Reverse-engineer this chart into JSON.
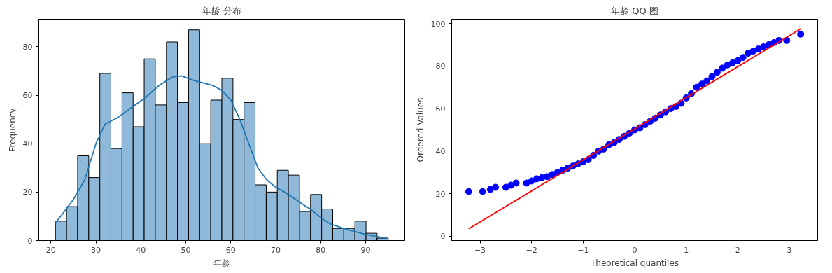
{
  "chart_data": [
    {
      "type": "histogram",
      "title": "年龄 分布",
      "xlabel": "年龄",
      "ylabel": "Frequency",
      "bins": [
        21,
        23.47,
        25.93,
        28.4,
        30.87,
        33.33,
        35.8,
        38.27,
        40.73,
        43.2,
        45.67,
        48.13,
        50.6,
        53.07,
        55.53,
        58,
        60.47,
        62.93,
        65.4,
        67.87,
        70.33,
        72.8,
        75.27,
        77.73,
        80.2,
        82.67,
        85.13,
        87.6,
        90.07,
        92.53,
        95
      ],
      "series": [
        {
          "color": "#8fb8d9",
          "values": [
            8,
            14,
            35,
            26,
            69,
            38,
            61,
            47,
            75,
            56,
            82,
            57,
            87,
            40,
            58,
            67,
            50,
            57,
            23,
            20,
            29,
            27,
            12,
            19,
            13,
            5,
            5,
            8,
            3,
            1
          ]
        },
        {
          "type": "line",
          "color": "#1f77b4",
          "x": [
            21,
            23,
            25,
            27.5,
            30,
            32,
            35,
            38,
            41,
            44,
            47,
            49,
            52,
            56,
            58,
            60,
            62,
            64,
            66,
            68,
            70,
            72,
            74,
            76,
            78,
            80,
            82,
            85,
            88,
            90,
            93,
            95
          ],
          "values": [
            7.3,
            12,
            17,
            25,
            40,
            48,
            51,
            55,
            59,
            64,
            67.5,
            68,
            66,
            64,
            62,
            58,
            50,
            40,
            30,
            25,
            22,
            20,
            17.5,
            15,
            12.5,
            9.5,
            7,
            5,
            3.5,
            2.5,
            1.5,
            0.8
          ]
        }
      ],
      "xlim": [
        17.3,
        98.7
      ],
      "ylim": [
        0,
        91.4
      ],
      "xticks": [
        20,
        30,
        40,
        50,
        60,
        70,
        80,
        90
      ],
      "yticks": [
        0,
        20,
        40,
        60,
        80
      ],
      "grid": false
    },
    {
      "type": "scatter",
      "title": "年龄 QQ 图",
      "xlabel": "Theoretical quantiles",
      "ylabel": "Ordered Values",
      "series": [
        {
          "marker": "circle",
          "color": "#0000ff",
          "x": [
            -3.22,
            -2.95,
            -2.8,
            -2.7,
            -2.5,
            -2.4,
            -2.3,
            -2.1,
            -2,
            -1.9,
            -1.8,
            -1.7,
            -1.6,
            -1.5,
            -1.4,
            -1.3,
            -1.2,
            -1.1,
            -1,
            -0.9,
            -0.8,
            -0.7,
            -0.6,
            -0.5,
            -0.4,
            -0.3,
            -0.2,
            -0.1,
            0,
            0.1,
            0.2,
            0.3,
            0.4,
            0.5,
            0.6,
            0.7,
            0.8,
            0.9,
            1,
            1.1,
            1.2,
            1.3,
            1.4,
            1.5,
            1.6,
            1.7,
            1.8,
            1.9,
            2,
            2.1,
            2.2,
            2.3,
            2.4,
            2.5,
            2.6,
            2.7,
            2.8,
            2.95,
            3.22
          ],
          "values": [
            21,
            21,
            22,
            23,
            23,
            24,
            25,
            25,
            26,
            27,
            27.5,
            28,
            29,
            30,
            31,
            32,
            33,
            34,
            35,
            36,
            38,
            40,
            41,
            43,
            44,
            45.5,
            47,
            48.5,
            50,
            51,
            52.5,
            54,
            55.5,
            57,
            58.5,
            60,
            61,
            62.5,
            65,
            67,
            70,
            71.5,
            73,
            75,
            77,
            79,
            80.5,
            81.5,
            82.5,
            84,
            86,
            87,
            88,
            89,
            90,
            91,
            92,
            92,
            95
          ]
        },
        {
          "type": "line",
          "color": "#ff0000",
          "x": [
            -3.22,
            3.22
          ],
          "values": [
            3.5,
            97.5
          ]
        }
      ],
      "xlim": [
        -3.55,
        3.55
      ],
      "ylim": [
        -2,
        102
      ],
      "xticks": [
        -3,
        -2,
        -1,
        0,
        1,
        2,
        3
      ],
      "yticks": [
        0,
        20,
        40,
        60,
        80,
        100
      ],
      "grid": false
    }
  ]
}
